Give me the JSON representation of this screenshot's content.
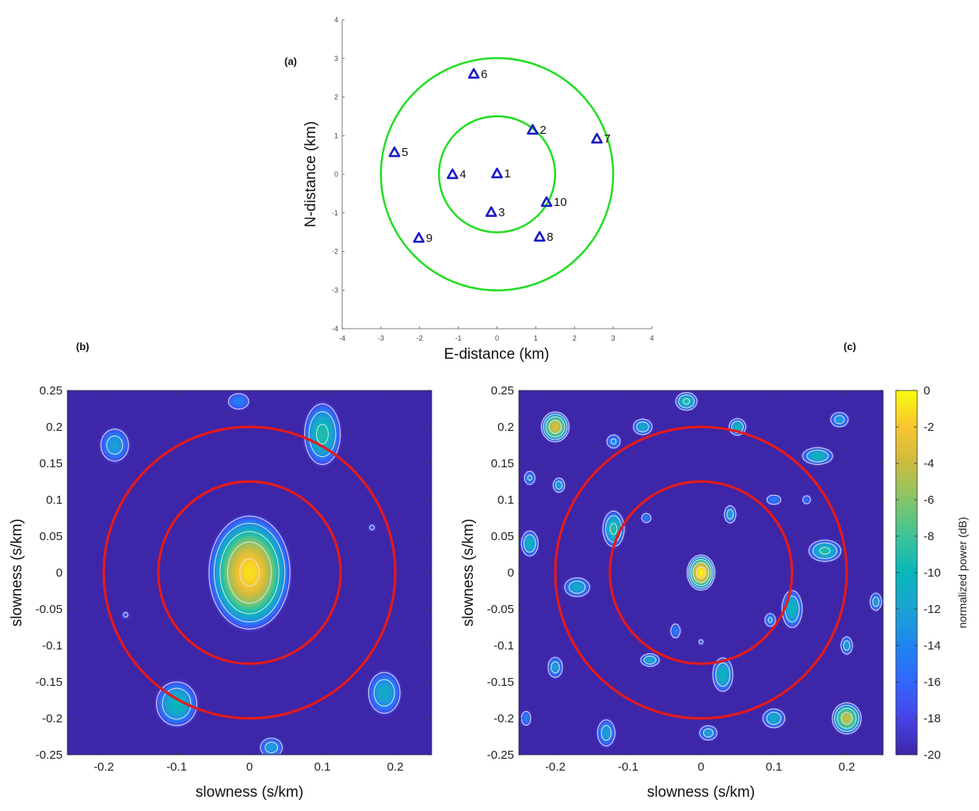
{
  "chart_data": [
    {
      "panel_label": "(a)",
      "type": "scatter",
      "xlabel": "E-distance (km)",
      "ylabel": "N-distance (km)",
      "xlim": [
        -4,
        4
      ],
      "ylim": [
        -4,
        4
      ],
      "xticks": [
        "-4",
        "-3",
        "-2",
        "-1",
        "0",
        "1",
        "2",
        "3",
        "4"
      ],
      "yticks": [
        "-4",
        "-3",
        "-2",
        "-1",
        "0",
        "1",
        "2",
        "3",
        "4"
      ],
      "marker": "triangle",
      "marker_color": "#1a1ac8",
      "circle_color": "#22dd22",
      "circles_radius_km": [
        1.5,
        3.0
      ],
      "stations": [
        {
          "label": "1",
          "x": 0.0,
          "y": 0.02
        },
        {
          "label": "2",
          "x": 0.92,
          "y": 1.15
        },
        {
          "label": "3",
          "x": -0.15,
          "y": -0.98
        },
        {
          "label": "4",
          "x": -1.15,
          "y": 0.0
        },
        {
          "label": "5",
          "x": -2.65,
          "y": 0.57
        },
        {
          "label": "6",
          "x": -0.6,
          "y": 2.6
        },
        {
          "label": "7",
          "x": 2.58,
          "y": 0.92
        },
        {
          "label": "8",
          "x": 1.1,
          "y": -1.62
        },
        {
          "label": "9",
          "x": -2.02,
          "y": -1.65
        },
        {
          "label": "10",
          "x": 1.28,
          "y": -0.72
        }
      ]
    },
    {
      "panel_label": "(b)",
      "type": "heatmap",
      "xlabel": "slowness (s/km)",
      "ylabel": "slowness (s/km)",
      "xlim": [
        -0.25,
        0.25
      ],
      "ylim": [
        -0.25,
        0.25
      ],
      "xticks": [
        "-0.2",
        "-0.1",
        "0",
        "0.1",
        "0.2"
      ],
      "yticks": [
        "0.25",
        "0.2",
        "0.15",
        "0.1",
        "0.05",
        "0",
        "-0.05",
        "-0.1",
        "-0.15",
        "-0.2",
        "-0.25"
      ],
      "circle_color": "#e41a1a",
      "circles_radius": [
        0.125,
        0.2
      ],
      "peaks": [
        {
          "x": 0.0,
          "y": 0.0,
          "power_db": -1,
          "sx": 0.033,
          "sy": 0.046
        },
        {
          "x": 0.1,
          "y": 0.19,
          "power_db": -9,
          "sx": 0.02,
          "sy": 0.034
        },
        {
          "x": -0.1,
          "y": -0.18,
          "power_db": -10,
          "sx": 0.024,
          "sy": 0.026
        },
        {
          "x": 0.185,
          "y": -0.165,
          "power_db": -11,
          "sx": 0.02,
          "sy": 0.026
        },
        {
          "x": -0.185,
          "y": 0.175,
          "power_db": -12,
          "sx": 0.019,
          "sy": 0.022
        },
        {
          "x": -0.015,
          "y": 0.235,
          "power_db": -14,
          "sx": 0.017,
          "sy": 0.013
        },
        {
          "x": 0.03,
          "y": -0.24,
          "power_db": -12,
          "sx": 0.015,
          "sy": 0.013
        },
        {
          "x": 0.168,
          "y": 0.062,
          "power_db": -17,
          "sx": 0.009,
          "sy": 0.009
        },
        {
          "x": -0.17,
          "y": -0.058,
          "power_db": -17,
          "sx": 0.009,
          "sy": 0.009
        }
      ]
    },
    {
      "panel_label": "(c)",
      "type": "heatmap",
      "xlabel": "slowness (s/km)",
      "ylabel": "slowness (s/km)",
      "xlim": [
        -0.25,
        0.25
      ],
      "ylim": [
        -0.25,
        0.25
      ],
      "xticks": [
        "-0.2",
        "-0.1",
        "0",
        "0.1",
        "0.2"
      ],
      "yticks": [
        "0.25",
        "0.2",
        "0.15",
        "0.1",
        "0.05",
        "0",
        "-0.05",
        "-0.1",
        "-0.15",
        "-0.2",
        "-0.25"
      ],
      "circle_color": "#e41a1a",
      "circles_radius": [
        0.125,
        0.2
      ],
      "peaks": [
        {
          "x": 0.0,
          "y": 0.0,
          "power_db": 0,
          "sx": 0.011,
          "sy": 0.014
        },
        {
          "x": -0.2,
          "y": 0.2,
          "power_db": -3,
          "sx": 0.012,
          "sy": 0.013
        },
        {
          "x": 0.2,
          "y": -0.2,
          "power_db": -4,
          "sx": 0.013,
          "sy": 0.014
        },
        {
          "x": -0.12,
          "y": 0.06,
          "power_db": -9,
          "sx": 0.012,
          "sy": 0.02
        },
        {
          "x": 0.17,
          "y": 0.03,
          "power_db": -9,
          "sx": 0.018,
          "sy": 0.012
        },
        {
          "x": 0.125,
          "y": -0.05,
          "power_db": -10,
          "sx": 0.012,
          "sy": 0.022
        },
        {
          "x": -0.17,
          "y": -0.02,
          "power_db": -11,
          "sx": 0.016,
          "sy": 0.012
        },
        {
          "x": -0.235,
          "y": 0.04,
          "power_db": -10,
          "sx": 0.01,
          "sy": 0.015
        },
        {
          "x": 0.05,
          "y": 0.2,
          "power_db": -10,
          "sx": 0.01,
          "sy": 0.01
        },
        {
          "x": -0.02,
          "y": 0.235,
          "power_db": -9,
          "sx": 0.012,
          "sy": 0.01
        },
        {
          "x": 0.16,
          "y": 0.16,
          "power_db": -10,
          "sx": 0.018,
          "sy": 0.01
        },
        {
          "x": 0.03,
          "y": -0.14,
          "power_db": -10,
          "sx": 0.012,
          "sy": 0.02
        },
        {
          "x": -0.07,
          "y": -0.12,
          "power_db": -11,
          "sx": 0.012,
          "sy": 0.008
        },
        {
          "x": -0.13,
          "y": -0.22,
          "power_db": -12,
          "sx": 0.012,
          "sy": 0.018
        },
        {
          "x": -0.2,
          "y": -0.13,
          "power_db": -12,
          "sx": 0.01,
          "sy": 0.014
        },
        {
          "x": 0.1,
          "y": -0.2,
          "power_db": -11,
          "sx": 0.014,
          "sy": 0.012
        },
        {
          "x": 0.01,
          "y": -0.22,
          "power_db": -12,
          "sx": 0.012,
          "sy": 0.01
        },
        {
          "x": 0.2,
          "y": -0.1,
          "power_db": -12,
          "sx": 0.008,
          "sy": 0.012
        },
        {
          "x": -0.035,
          "y": -0.08,
          "power_db": -14,
          "sx": 0.008,
          "sy": 0.012
        },
        {
          "x": 0.04,
          "y": 0.08,
          "power_db": -12,
          "sx": 0.008,
          "sy": 0.012
        },
        {
          "x": -0.075,
          "y": 0.075,
          "power_db": -14,
          "sx": 0.008,
          "sy": 0.008
        },
        {
          "x": 0.1,
          "y": 0.1,
          "power_db": -14,
          "sx": 0.012,
          "sy": 0.008
        },
        {
          "x": 0.095,
          "y": -0.065,
          "power_db": -13,
          "sx": 0.008,
          "sy": 0.01
        },
        {
          "x": -0.235,
          "y": 0.13,
          "power_db": -13,
          "sx": 0.008,
          "sy": 0.01
        },
        {
          "x": -0.195,
          "y": 0.12,
          "power_db": -12,
          "sx": 0.008,
          "sy": 0.01
        },
        {
          "x": 0.19,
          "y": 0.21,
          "power_db": -12,
          "sx": 0.012,
          "sy": 0.01
        },
        {
          "x": -0.08,
          "y": 0.2,
          "power_db": -11,
          "sx": 0.012,
          "sy": 0.01
        },
        {
          "x": 0.24,
          "y": -0.04,
          "power_db": -12,
          "sx": 0.008,
          "sy": 0.012
        },
        {
          "x": -0.24,
          "y": -0.2,
          "power_db": -14,
          "sx": 0.008,
          "sy": 0.012
        },
        {
          "x": 0.0,
          "y": -0.095,
          "power_db": -16,
          "sx": 0.006,
          "sy": 0.006
        },
        {
          "x": -0.12,
          "y": 0.18,
          "power_db": -13,
          "sx": 0.01,
          "sy": 0.01
        },
        {
          "x": 0.145,
          "y": 0.1,
          "power_db": -15,
          "sx": 0.008,
          "sy": 0.008
        }
      ]
    }
  ],
  "colorbar": {
    "label": "normalized power (dB)",
    "ticks": [
      "0",
      "-2",
      "-4",
      "-6",
      "-8",
      "-10",
      "-12",
      "-14",
      "-16",
      "-18",
      "-20"
    ],
    "min": -20,
    "max": 0
  }
}
